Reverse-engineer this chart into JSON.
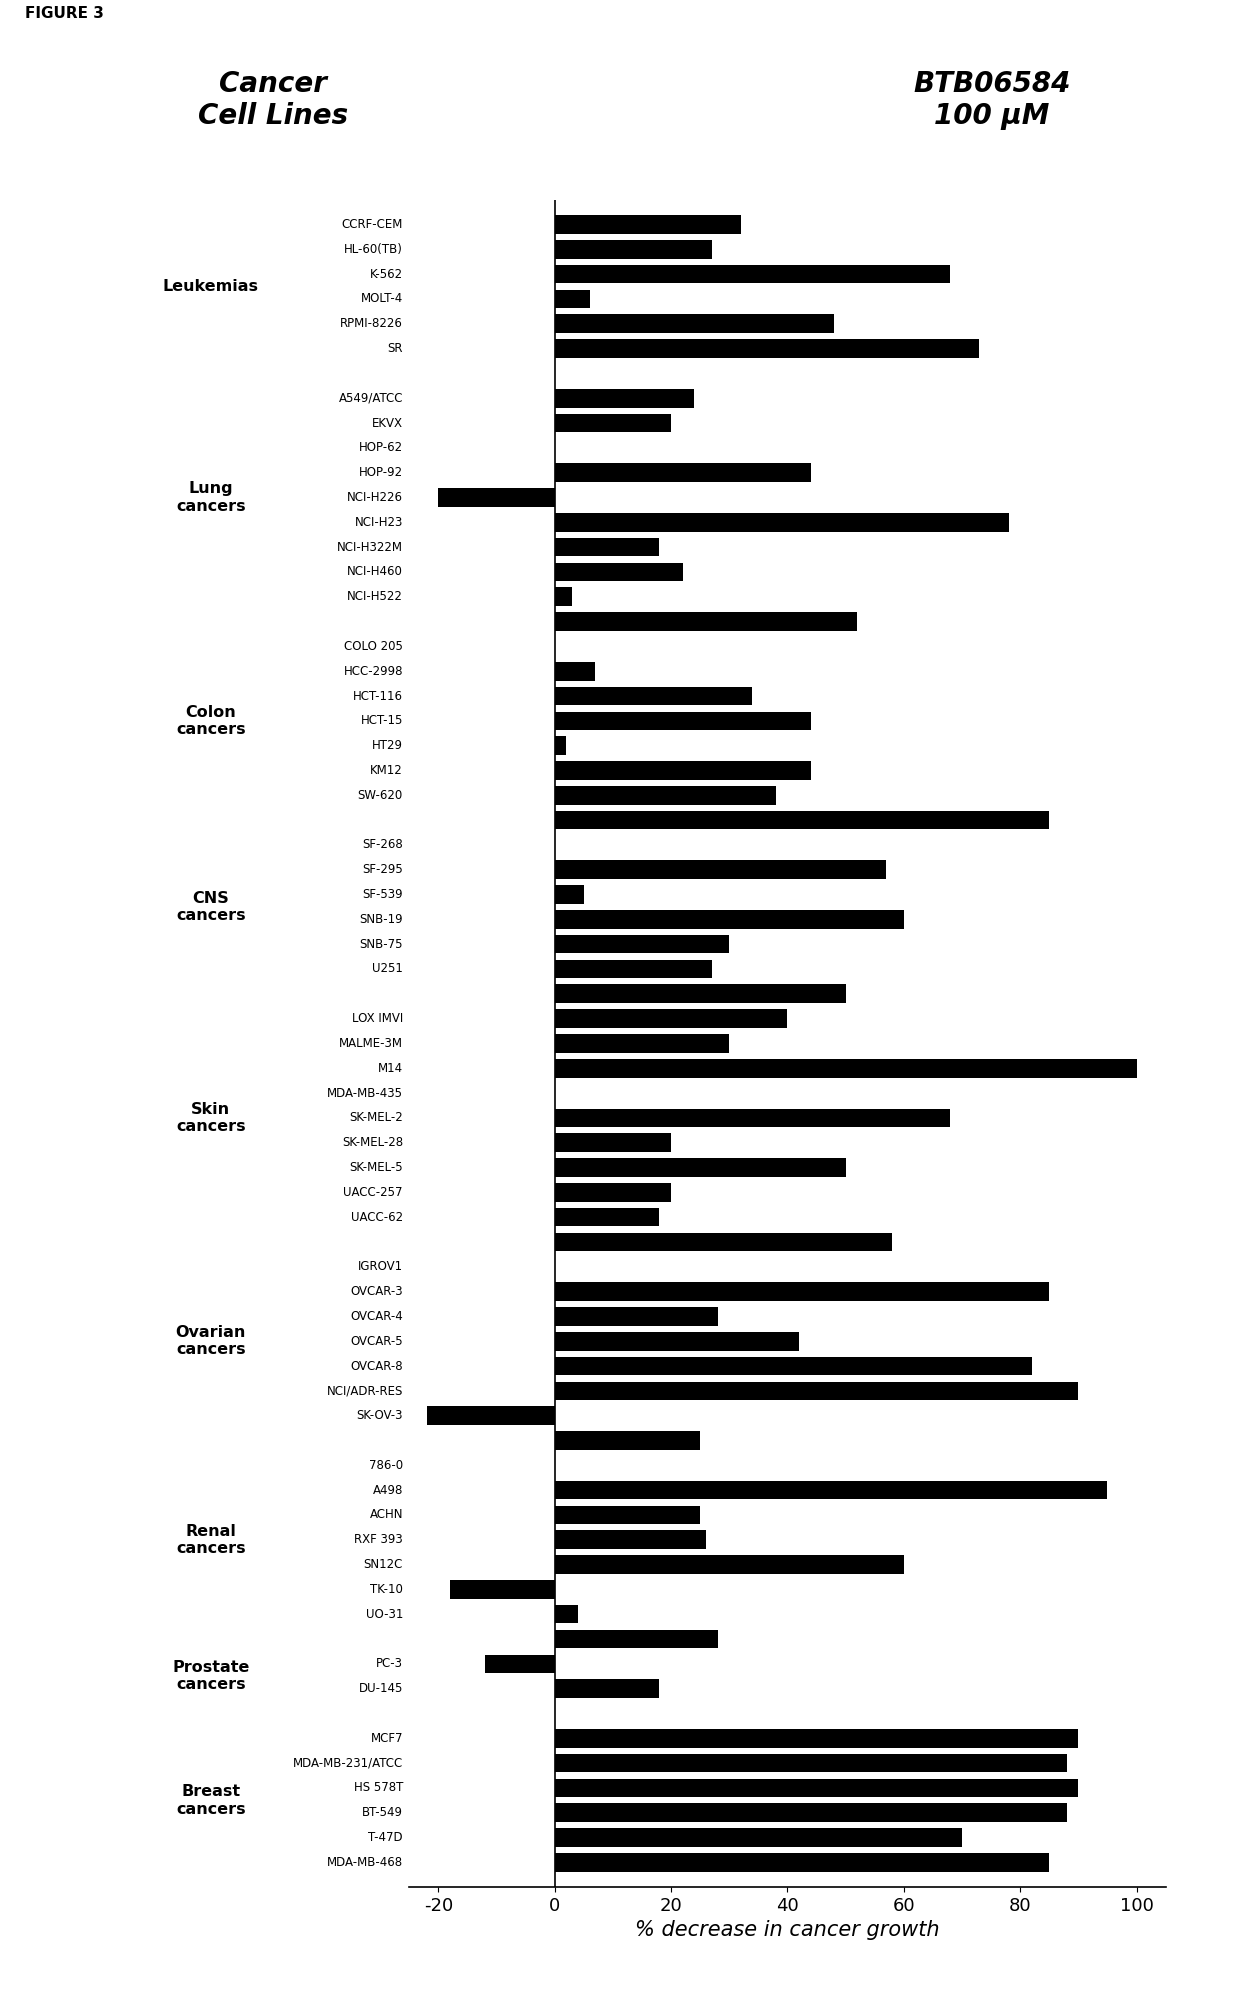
{
  "figure_label": "FIGURE 3",
  "title_left": "Cancer\nCell Lines",
  "title_right": "BTB06584\n100 μM",
  "xlabel": "% decrease in cancer growth",
  "xlim": [
    -25,
    105
  ],
  "xticks": [
    -20,
    0,
    20,
    40,
    60,
    80,
    100
  ],
  "bar_color": "#000000",
  "entries": [
    {
      "name": "MDA-MB-468",
      "value": 32
    },
    {
      "name": "T-47D",
      "value": 27
    },
    {
      "name": "BT-549",
      "value": 68
    },
    {
      "name": "HS 578T",
      "value": 6
    },
    {
      "name": "MDA-MB-231/ATCC",
      "value": 48
    },
    {
      "name": "MCF7",
      "value": 73
    },
    {
      "name": "",
      "value": 0
    },
    {
      "name": "DU-145",
      "value": 24
    },
    {
      "name": "PC-3",
      "value": 20
    },
    {
      "name": "",
      "value": 0
    },
    {
      "name": "UO-31",
      "value": 44
    },
    {
      "name": "TK-10",
      "value": -20
    },
    {
      "name": "SN12C",
      "value": 78
    },
    {
      "name": "RXF 393",
      "value": 18
    },
    {
      "name": "ACHN",
      "value": 22
    },
    {
      "name": "A498",
      "value": 3
    },
    {
      "name": "786-0",
      "value": 52
    },
    {
      "name": "",
      "value": 0
    },
    {
      "name": "SK-OV-3",
      "value": 7
    },
    {
      "name": "NCI/ADR-RES",
      "value": 34
    },
    {
      "name": "OVCAR-8",
      "value": 44
    },
    {
      "name": "OVCAR-5",
      "value": 2
    },
    {
      "name": "OVCAR-4",
      "value": 44
    },
    {
      "name": "OVCAR-3",
      "value": 38
    },
    {
      "name": "IGROV1",
      "value": 85
    },
    {
      "name": "",
      "value": 0
    },
    {
      "name": "UACC-62",
      "value": 57
    },
    {
      "name": "UACC-257",
      "value": 5
    },
    {
      "name": "SK-MEL-5",
      "value": 60
    },
    {
      "name": "SK-MEL-28",
      "value": 30
    },
    {
      "name": "SK-MEL-2",
      "value": 27
    },
    {
      "name": "MDA-MB-435",
      "value": 50
    },
    {
      "name": "M14",
      "value": 40
    },
    {
      "name": "MALME-3M",
      "value": 30
    },
    {
      "name": "LOX IMVI",
      "value": 100
    },
    {
      "name": "",
      "value": 0
    },
    {
      "name": "U251",
      "value": 68
    },
    {
      "name": "SNB-75",
      "value": 20
    },
    {
      "name": "SNB-19",
      "value": 50
    },
    {
      "name": "SF-539",
      "value": 20
    },
    {
      "name": "SF-295",
      "value": 18
    },
    {
      "name": "SF-268",
      "value": 58
    },
    {
      "name": "",
      "value": 0
    },
    {
      "name": "SW-620",
      "value": 85
    },
    {
      "name": "KM12",
      "value": 28
    },
    {
      "name": "HT29",
      "value": 42
    },
    {
      "name": "HCT-15",
      "value": 82
    },
    {
      "name": "HCT-116",
      "value": 90
    },
    {
      "name": "HCC-2998",
      "value": -22
    },
    {
      "name": "COLO 205",
      "value": 25
    },
    {
      "name": "",
      "value": 0
    },
    {
      "name": "NCI-H522",
      "value": 95
    },
    {
      "name": "NCI-H460",
      "value": 25
    },
    {
      "name": "NCI-H322M",
      "value": 26
    },
    {
      "name": "NCI-H23",
      "value": 60
    },
    {
      "name": "NCI-H226",
      "value": -18
    },
    {
      "name": "HOP-92",
      "value": 4
    },
    {
      "name": "HOP-62",
      "value": 28
    },
    {
      "name": "EKVX",
      "value": -12
    },
    {
      "name": "A549/ATCC",
      "value": 18
    },
    {
      "name": "",
      "value": 0
    },
    {
      "name": "SR",
      "value": 90
    },
    {
      "name": "RPMI-8226",
      "value": 88
    },
    {
      "name": "MOLT-4",
      "value": 90
    },
    {
      "name": "K-562",
      "value": 88
    },
    {
      "name": "HL-60(TB)",
      "value": 70
    },
    {
      "name": "CCRF-CEM",
      "value": 85
    }
  ],
  "groups": [
    {
      "label": "Breast\ncancers",
      "indices": [
        0,
        1,
        2,
        3,
        4,
        5
      ]
    },
    {
      "label": "Prostate\ncancers",
      "indices": [
        7,
        8
      ]
    },
    {
      "label": "Renal\ncancers",
      "indices": [
        10,
        11,
        12,
        13,
        14,
        15,
        16
      ]
    },
    {
      "label": "Ovarian\ncancers",
      "indices": [
        18,
        19,
        20,
        21,
        22,
        23,
        24
      ]
    },
    {
      "label": "Skin\ncancers",
      "indices": [
        26,
        27,
        28,
        29,
        30,
        31,
        32,
        33,
        34
      ]
    },
    {
      "label": "CNS\ncancers",
      "indices": [
        36,
        37,
        38,
        39,
        40,
        41
      ]
    },
    {
      "label": "Colon\ncancers",
      "indices": [
        43,
        44,
        45,
        46,
        47,
        48,
        49
      ]
    },
    {
      "label": "Lung\ncancers",
      "indices": [
        51,
        52,
        53,
        54,
        55,
        56,
        57,
        58,
        59
      ]
    },
    {
      "label": "Leukemias",
      "indices": [
        61,
        62,
        63,
        64,
        65,
        66
      ]
    }
  ]
}
